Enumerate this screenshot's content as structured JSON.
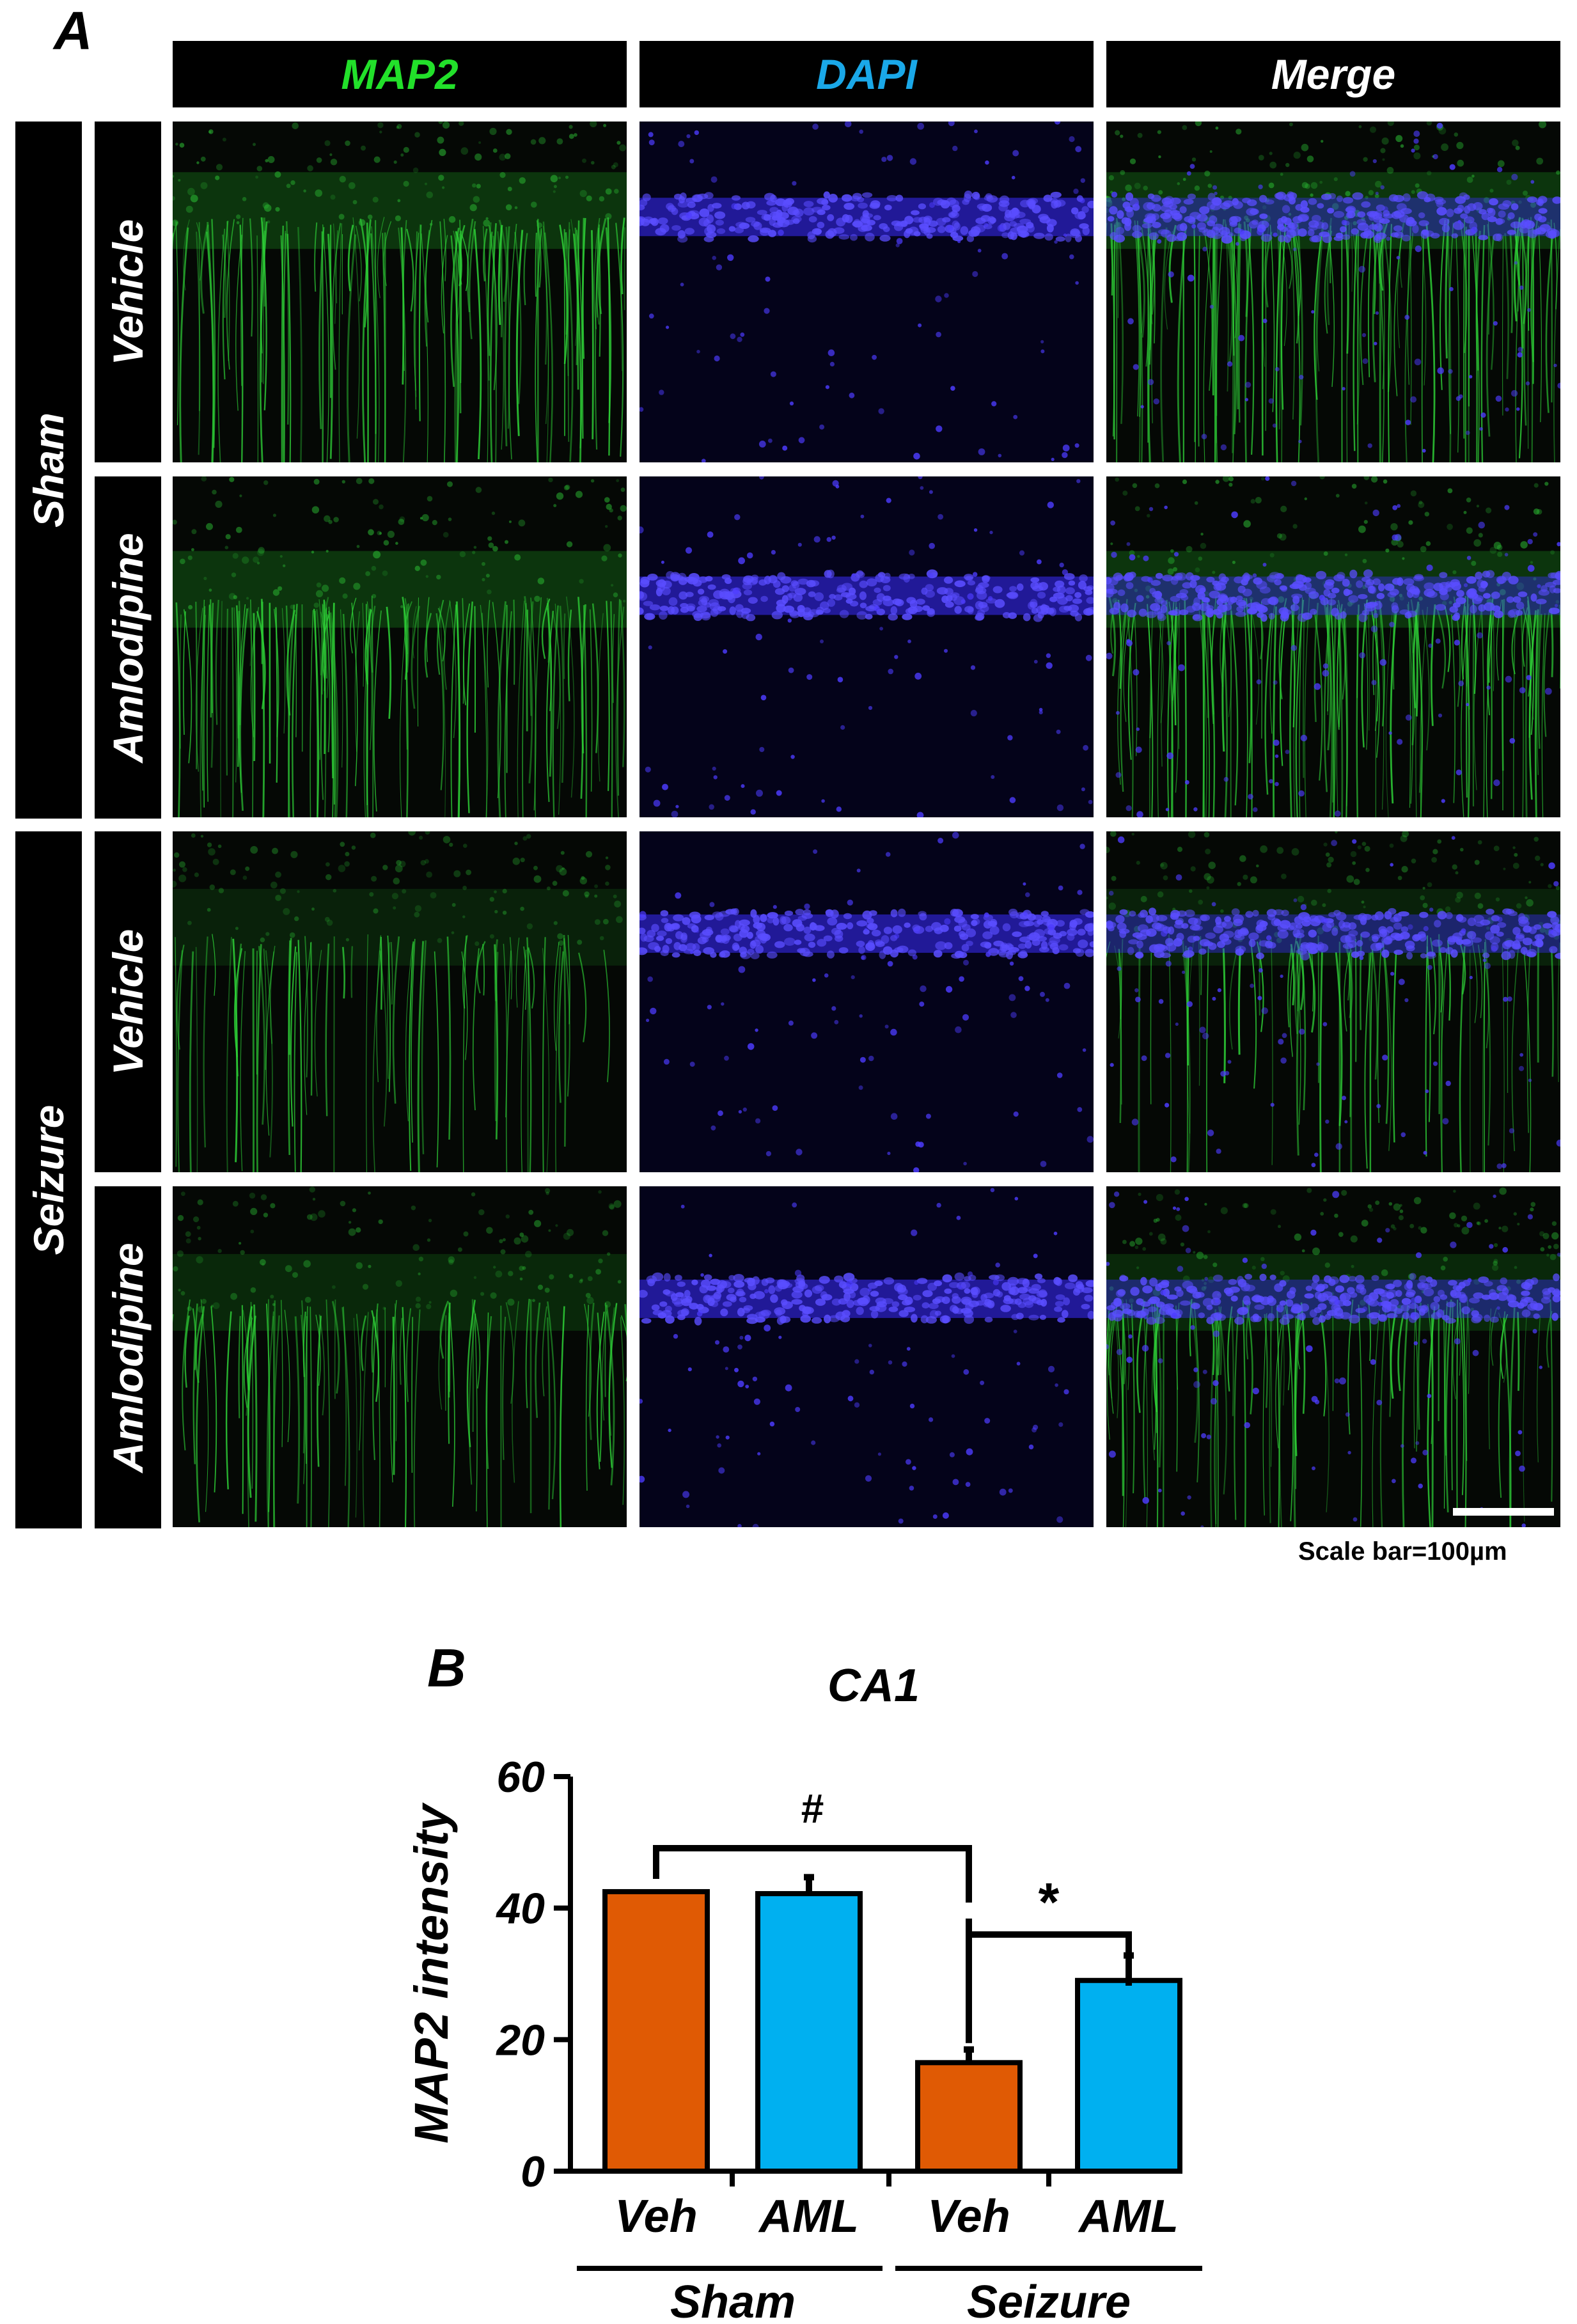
{
  "figure": {
    "panel_a_letter": "A",
    "panel_b_letter": "B",
    "columns": [
      {
        "label": "MAP2",
        "color": "#22e02a"
      },
      {
        "label": "DAPI",
        "color": "#1aa8e8"
      },
      {
        "label": "Merge",
        "color": "#ffffff"
      }
    ],
    "groups": [
      {
        "label": "Sham",
        "rows": [
          "Vehicle",
          "Amlodipine"
        ]
      },
      {
        "label": "Seizure",
        "rows": [
          "Vehicle",
          "Amlodipine"
        ]
      }
    ],
    "scale_bar_label": "Scale bar=100µm",
    "colors": {
      "map2": "#22c32a",
      "dapi": "#3d2dff",
      "bg": "#050505"
    }
  },
  "chart_data": {
    "type": "bar",
    "title": "CA1",
    "ylabel": "MAP2 intensity",
    "xlabel": "",
    "ylim": [
      0,
      60
    ],
    "yticks": [
      "0",
      "20",
      "40",
      "60"
    ],
    "categories": [
      "Veh",
      "AML",
      "Veh",
      "AML"
    ],
    "groups": [
      "Sham",
      "Seizure"
    ],
    "values": [
      42.5,
      42.2,
      16.5,
      29.0
    ],
    "errors": [
      0,
      2.5,
      2.0,
      3.8
    ],
    "bar_colors": [
      "#e05a04",
      "#00b0f0",
      "#e05a04",
      "#00b0f0"
    ],
    "annotations": [
      {
        "label": "#",
        "from": 0,
        "to": 2
      },
      {
        "label": "*",
        "from": 2,
        "to": 3
      }
    ]
  }
}
